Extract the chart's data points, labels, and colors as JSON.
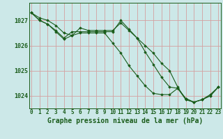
{
  "title": "Graphe pression niveau de la mer (hPa)",
  "bg_color": "#cce8e8",
  "grid_color": "#d4a0a0",
  "line_color": "#1a5c1a",
  "hours": [
    0,
    1,
    2,
    3,
    4,
    5,
    6,
    7,
    8,
    9,
    10,
    11,
    12,
    13,
    14,
    15,
    16,
    17,
    18,
    19,
    20,
    21,
    22,
    23
  ],
  "series1": [
    1027.3,
    1027.1,
    1027.0,
    1026.8,
    1026.5,
    1026.4,
    1026.7,
    1026.6,
    1026.6,
    1026.6,
    1026.6,
    1026.9,
    1026.6,
    1026.3,
    1026.0,
    1025.7,
    1025.3,
    1025.0,
    1024.35,
    1023.85,
    1023.75,
    1023.85,
    1024.05,
    1024.35
  ],
  "series2": [
    1027.3,
    1027.0,
    1026.85,
    1026.6,
    1026.3,
    1026.55,
    1026.55,
    1026.55,
    1026.55,
    1026.55,
    1026.55,
    1027.0,
    1026.65,
    1026.3,
    1025.75,
    1025.25,
    1024.75,
    1024.35,
    1024.3,
    1023.9,
    1023.75,
    1023.85,
    1024.0,
    1024.35
  ],
  "series3": [
    1027.3,
    1027.0,
    1026.85,
    1026.55,
    1026.25,
    1026.4,
    1026.5,
    1026.5,
    1026.5,
    1026.5,
    1026.1,
    1025.7,
    1025.2,
    1024.8,
    1024.4,
    1024.1,
    1024.05,
    1024.05,
    1024.3,
    1023.85,
    1023.75,
    1023.85,
    1024.0,
    1024.35
  ],
  "ylim_min": 1023.5,
  "ylim_max": 1027.7,
  "yticks": [
    1024,
    1025,
    1026,
    1027
  ],
  "marker": "D",
  "markersize": 1.8,
  "linewidth": 0.8,
  "tick_fontsize": 5.5,
  "ylabel_fontsize": 6.0,
  "xlabel_fontsize": 7.0
}
